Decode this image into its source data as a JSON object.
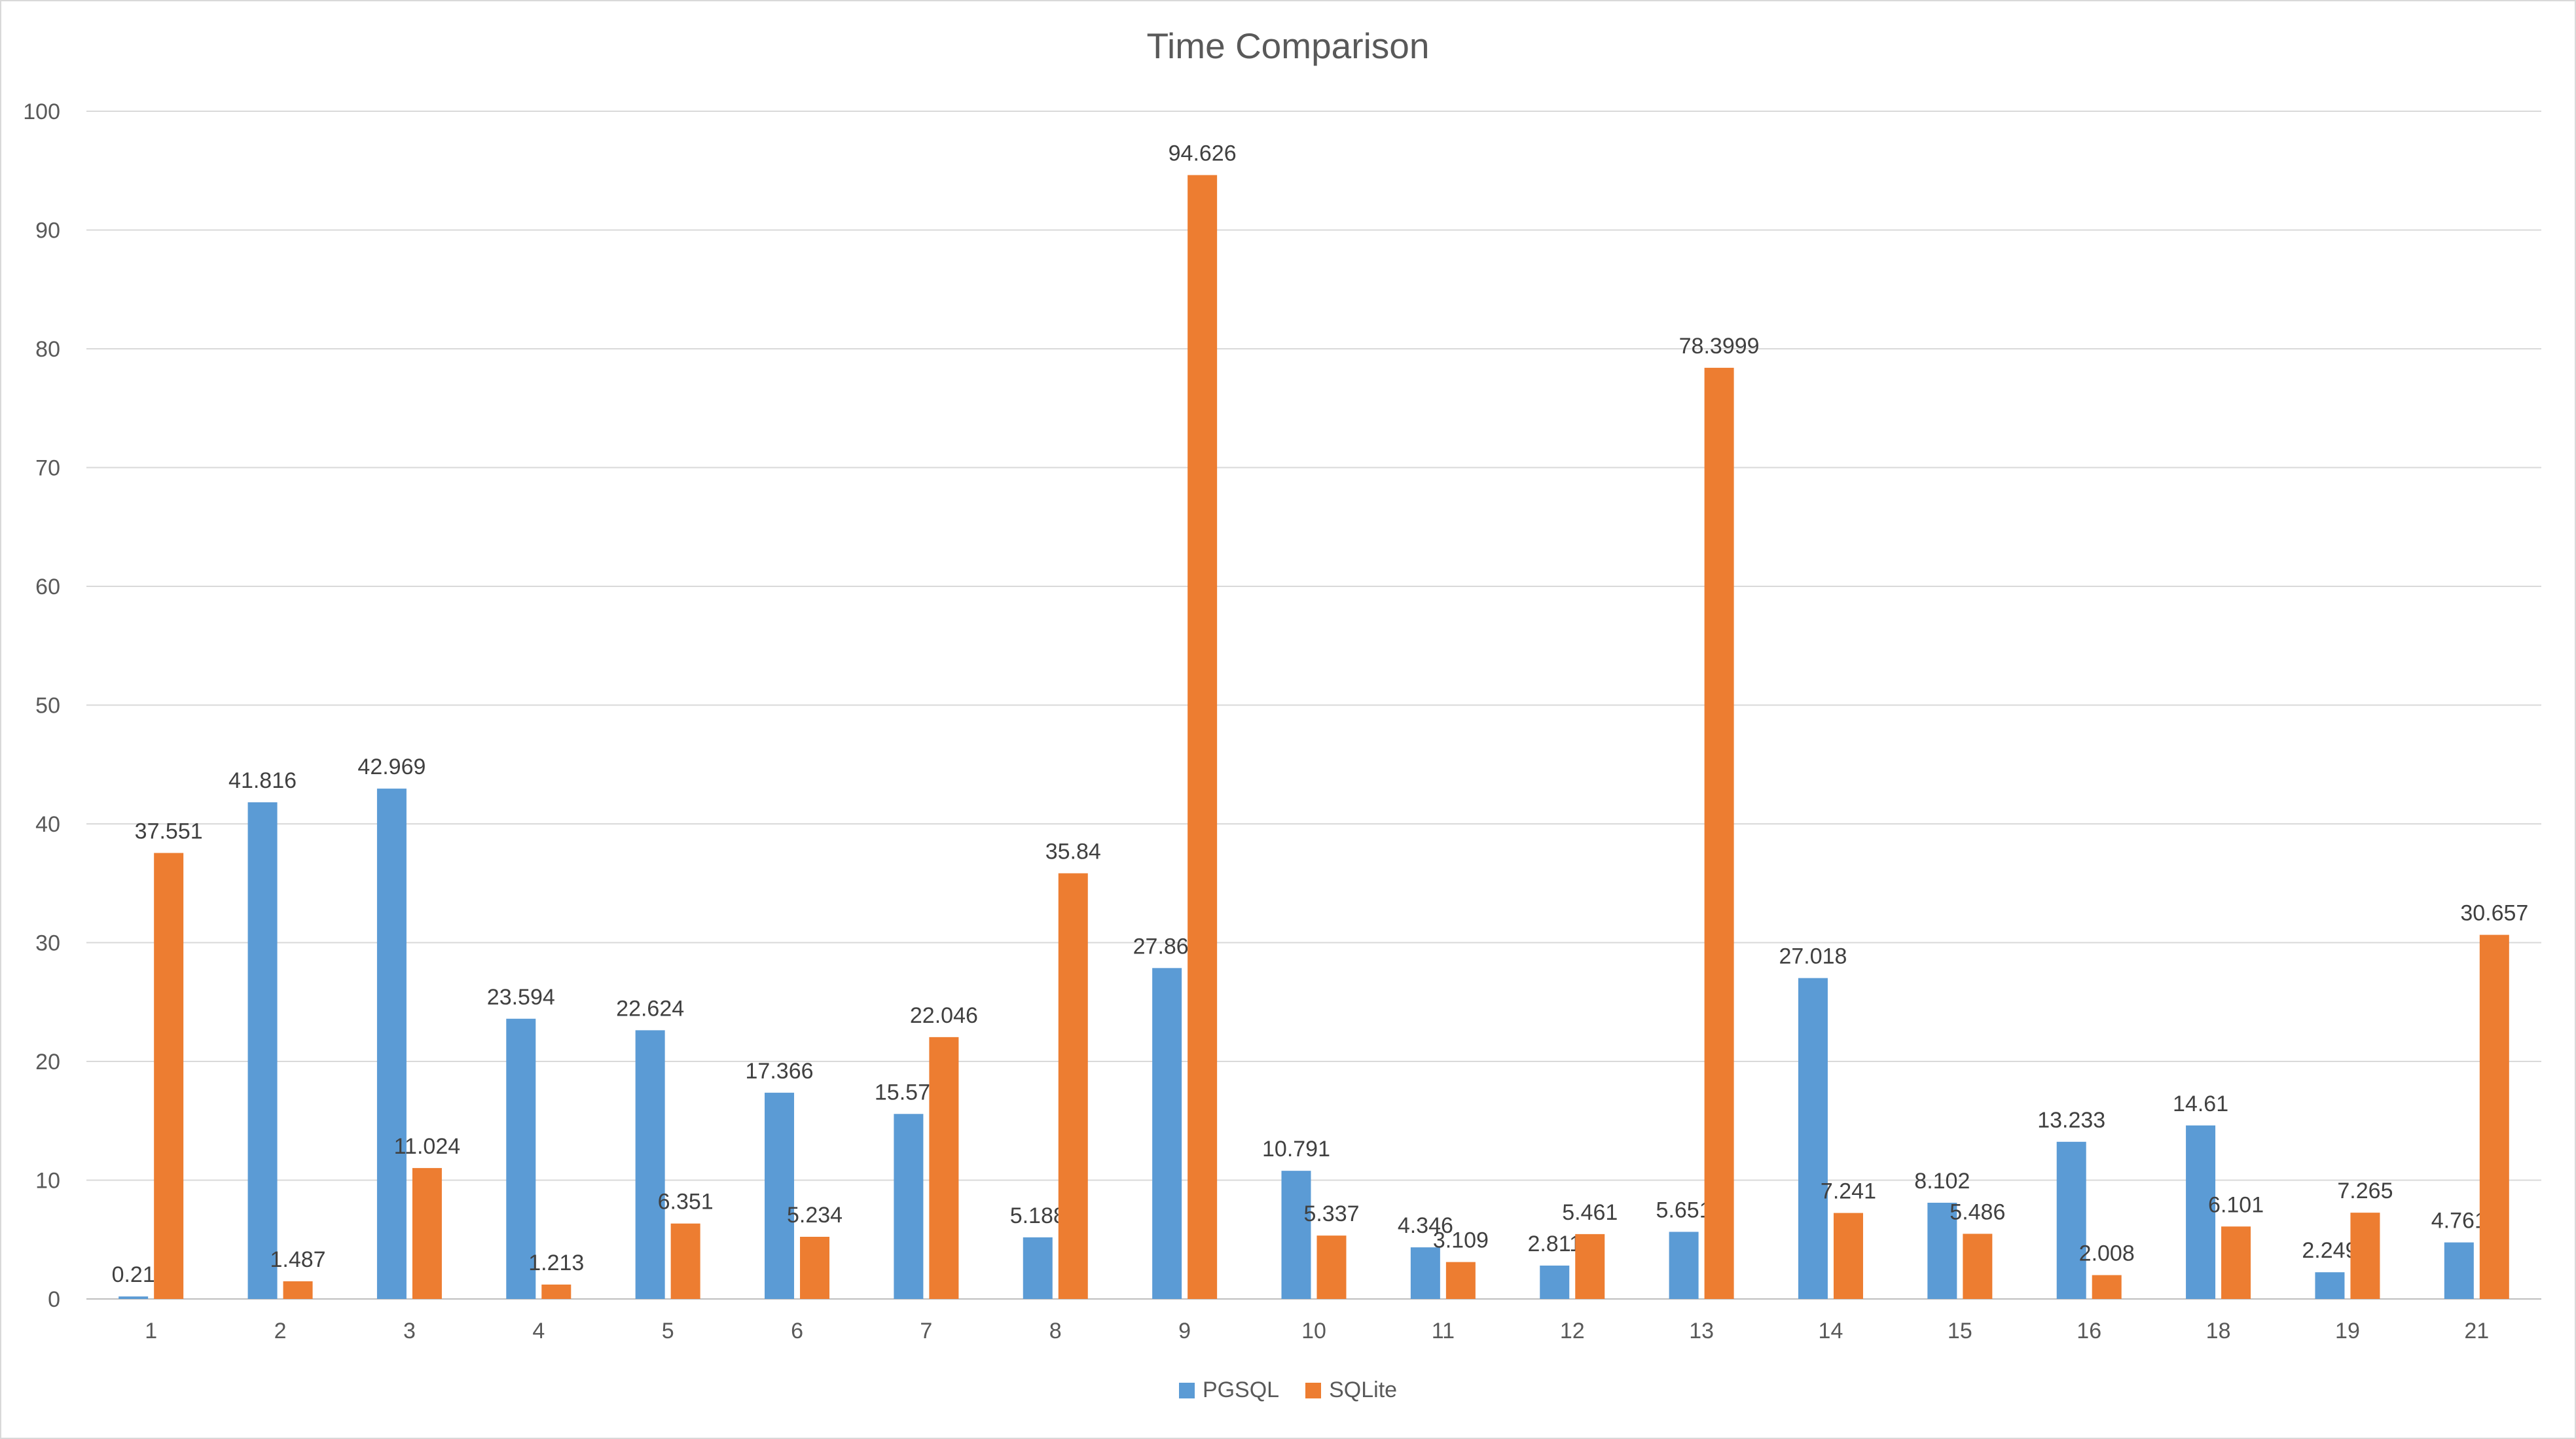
{
  "chart_data": {
    "type": "bar",
    "title": "Time Comparison",
    "xlabel": "",
    "ylabel": "",
    "ylim": [
      0,
      100
    ],
    "yticks": [
      0,
      10,
      20,
      30,
      40,
      50,
      60,
      70,
      80,
      90,
      100
    ],
    "grid": true,
    "legend_position": "bottom",
    "categories": [
      "1",
      "2",
      "3",
      "4",
      "5",
      "6",
      "7",
      "8",
      "9",
      "10",
      "11",
      "12",
      "13",
      "14",
      "15",
      "16",
      "18",
      "19",
      "21"
    ],
    "series": [
      {
        "name": "PGSQL",
        "color": "#5b9bd5",
        "values": [
          0.21,
          41.816,
          42.969,
          23.594,
          22.624,
          17.366,
          15.578,
          5.188,
          27.861,
          10.791,
          4.346,
          2.811,
          5.651,
          27.018,
          8.102,
          13.233,
          14.61,
          2.249,
          4.761
        ],
        "labels": [
          "0.21",
          "41.816",
          "42.969",
          "23.594",
          "22.624",
          "17.366",
          "15.578",
          "5.188",
          "27.861",
          "10.791",
          "4.346",
          "2.811",
          "5.651",
          "27.018",
          "8.102",
          "13.233",
          "14.61",
          "2.249",
          "4.761"
        ]
      },
      {
        "name": "SQLite",
        "color": "#ed7d31",
        "values": [
          37.551,
          1.487,
          11.024,
          1.213,
          6.351,
          5.234,
          22.046,
          35.84,
          94.626,
          5.337,
          3.109,
          5.461,
          78.3999,
          7.241,
          5.486,
          2.008,
          6.101,
          7.265,
          30.657
        ],
        "labels": [
          "37.551",
          "1.487",
          "11.024",
          "1.213",
          "6.351",
          "5.234",
          "22.046",
          "35.84",
          "94.626",
          "5.337",
          "3.109",
          "5.461",
          "78.3999",
          "7.241",
          "5.486",
          "2.008",
          "6.101",
          "7.265",
          "30.657"
        ]
      }
    ]
  }
}
